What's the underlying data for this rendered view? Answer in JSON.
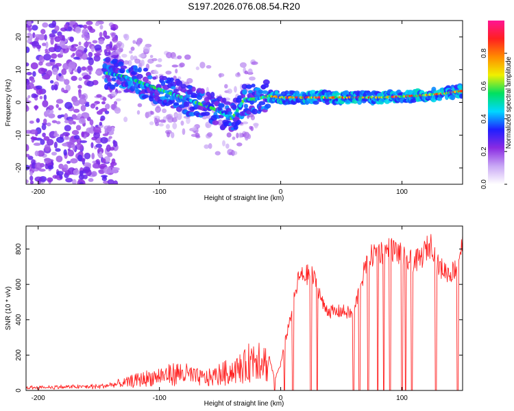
{
  "chart_data": [
    {
      "type": "heatmap",
      "title": "S197.2026.076.08.54.R20",
      "xlabel": "Height of straight line (km)",
      "ylabel": "Frequency (Hz)",
      "xlim": [
        -210,
        150
      ],
      "ylim": [
        -25,
        25
      ],
      "x_ticks": [
        -200,
        -100,
        0,
        100
      ],
      "y_ticks": [
        -20,
        -10,
        0,
        10,
        20
      ],
      "colorbar": {
        "label": "Normalized spectral amplitude",
        "range": [
          0,
          1
        ],
        "ticks": [
          0.0,
          0.2,
          0.4,
          0.6,
          0.8
        ],
        "tick_labels": [
          "0.0",
          "0.2",
          "0.4",
          "0.6",
          "0.8"
        ],
        "colors": [
          "#ffffff",
          "#c9a8f5",
          "#8a2be2",
          "#1f1fff",
          "#00d8ff",
          "#00e060",
          "#f0f000",
          "#ff8c00",
          "#ff2020",
          "#ff1493"
        ]
      },
      "ridge": {
        "x": [
          -145,
          -130,
          -115,
          -100,
          -85,
          -70,
          -55,
          -40,
          -30,
          -20,
          -10,
          0,
          20,
          50,
          80,
          110,
          130,
          150
        ],
        "freq": [
          9,
          8,
          6,
          4,
          2,
          0,
          -2,
          -5,
          1,
          1,
          2,
          1.5,
          1.5,
          1.5,
          1.5,
          2,
          2.5,
          3.5
        ]
      }
    },
    {
      "type": "line",
      "xlabel": "Height of straight line (km)",
      "ylabel": "SNR (10 * v/v)",
      "xlim": [
        -210,
        150
      ],
      "ylim": [
        0,
        930
      ],
      "x_ticks": [
        -200,
        -100,
        0,
        100
      ],
      "y_ticks": [
        0,
        200,
        400,
        600,
        800
      ],
      "series": [
        {
          "name": "SNR",
          "color": "#ff2020",
          "x": [
            -210,
            -180,
            -150,
            -140,
            -130,
            -120,
            -110,
            -100,
            -90,
            -80,
            -70,
            -60,
            -50,
            -40,
            -30,
            -25,
            -20,
            -15,
            -10,
            -5,
            0,
            5,
            10,
            15,
            20,
            25,
            30,
            35,
            40,
            45,
            50,
            55,
            60,
            65,
            70,
            75,
            80,
            85,
            90,
            95,
            100,
            105,
            110,
            115,
            120,
            125,
            130,
            135,
            140,
            145,
            150
          ],
          "y": [
            20,
            25,
            30,
            45,
            60,
            90,
            110,
            130,
            150,
            160,
            120,
            110,
            150,
            180,
            220,
            280,
            340,
            320,
            200,
            60,
            150,
            320,
            480,
            640,
            650,
            660,
            600,
            480,
            450,
            440,
            450,
            440,
            430,
            580,
            700,
            760,
            790,
            780,
            800,
            790,
            760,
            730,
            730,
            740,
            800,
            830,
            700,
            680,
            660,
            700,
            830
          ],
          "dropout_x": [
            -5,
            3,
            10,
            25,
            30,
            60,
            65,
            72,
            80,
            85,
            90,
            100,
            103,
            108,
            128,
            146
          ]
        }
      ]
    }
  ]
}
